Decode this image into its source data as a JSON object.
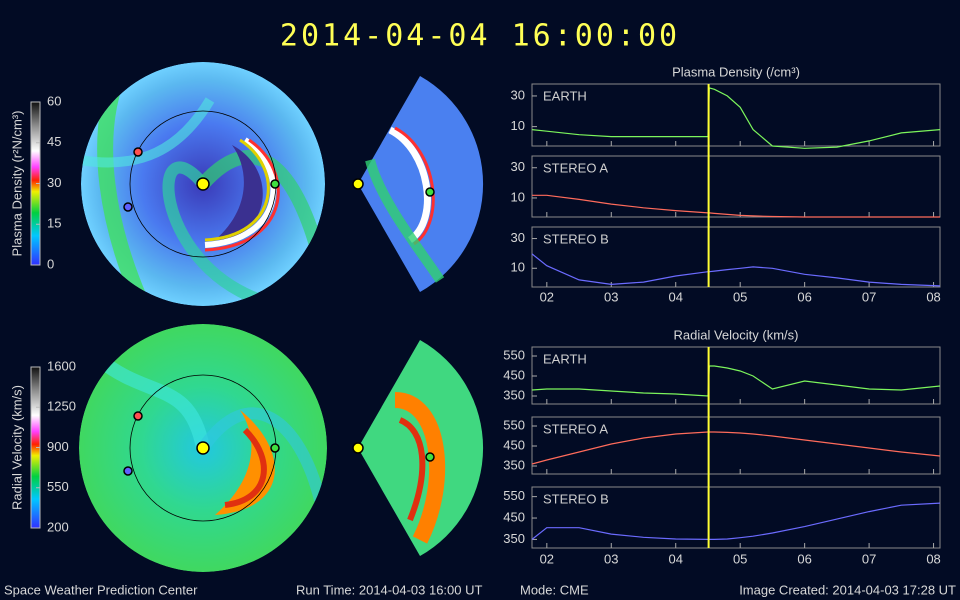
{
  "title": "2014-04-04 16:00:00",
  "footer": {
    "left": "Space Weather Prediction Center",
    "run_time": "Run Time: 2014-04-03 16:00 UT",
    "mode": "Mode: CME",
    "created": "Image Created: 2014-04-03 17:28 UT"
  },
  "colorbars": [
    {
      "label": "Plasma Density (r²N/cm³)",
      "ylim": [
        0,
        60
      ],
      "ticks": [
        0,
        15,
        30,
        45,
        60
      ]
    },
    {
      "label": "Radial Velocity (km/s)",
      "ylim": [
        200,
        1600
      ],
      "ticks": [
        200,
        550,
        900,
        1250,
        1600
      ]
    }
  ],
  "chart_data": [
    {
      "type": "line",
      "title": "Plasma Density (/cm³)",
      "log": true,
      "x": [
        1.77,
        2.0,
        2.5,
        3.0,
        3.5,
        4.0,
        4.5,
        4.52,
        4.6,
        4.8,
        5.0,
        5.2,
        5.5,
        6.0,
        6.5,
        7.0,
        7.5,
        8.1
      ],
      "xlim": [
        1.77,
        8.1
      ],
      "xticks": [
        {
          "value": 2,
          "label": "02"
        },
        {
          "value": 3,
          "label": "03"
        },
        {
          "value": 4,
          "label": "04"
        },
        {
          "value": 5,
          "label": "05"
        },
        {
          "value": 6,
          "label": "06"
        },
        {
          "value": 7,
          "label": "07"
        },
        {
          "value": 8,
          "label": "08"
        }
      ],
      "marker_x": 4.51,
      "marker_color": "#ffff33",
      "series": [
        {
          "name": "EARTH",
          "color": "#7cf55c",
          "ylim": [
            5,
            46
          ],
          "yticks": [
            10,
            30
          ],
          "values": [
            9,
            8.5,
            7.5,
            7,
            7,
            7,
            7,
            40,
            38,
            30,
            20,
            9,
            5,
            4.6,
            4.8,
            6,
            8,
            9
          ]
        },
        {
          "name": "STEREO A",
          "color": "#ff6b5b",
          "ylim": [
            5,
            46
          ],
          "yticks": [
            10,
            30
          ],
          "values": [
            11,
            11,
            9.5,
            8,
            7,
            6.3,
            5.8,
            5.8,
            5.7,
            5.5,
            5.3,
            5.2,
            5.1,
            5,
            5,
            5,
            5,
            5
          ]
        },
        {
          "name": "STEREO B",
          "color": "#6b6bff",
          "ylim": [
            5,
            46
          ],
          "yticks": [
            10,
            30
          ],
          "values": [
            17,
            11,
            6.5,
            5.5,
            6,
            7.5,
            8.8,
            8.8,
            9,
            9.5,
            10,
            10.5,
            10,
            8,
            7,
            6,
            5.5,
            5.2
          ]
        }
      ]
    },
    {
      "type": "line",
      "title": "Radial Velocity (km/s)",
      "log": false,
      "x": [
        1.77,
        2.0,
        2.5,
        3.0,
        3.5,
        4.0,
        4.5,
        4.52,
        4.6,
        4.8,
        5.0,
        5.2,
        5.5,
        6.0,
        6.5,
        7.0,
        7.5,
        8.1
      ],
      "xlim": [
        1.77,
        8.1
      ],
      "xticks": [
        {
          "value": 2,
          "label": "02"
        },
        {
          "value": 3,
          "label": "03"
        },
        {
          "value": 4,
          "label": "04"
        },
        {
          "value": 5,
          "label": "05"
        },
        {
          "value": 6,
          "label": "06"
        },
        {
          "value": 7,
          "label": "07"
        },
        {
          "value": 8,
          "label": "08"
        }
      ],
      "marker_x": 4.51,
      "marker_color": "#ffff33",
      "series": [
        {
          "name": "EARTH",
          "color": "#7cf55c",
          "ylim": [
            310,
            595
          ],
          "yticks": [
            350,
            450,
            550
          ],
          "values": [
            380,
            385,
            385,
            375,
            365,
            360,
            350,
            500,
            500,
            490,
            475,
            450,
            385,
            425,
            405,
            385,
            380,
            400
          ]
        },
        {
          "name": "STEREO A",
          "color": "#ff6b5b",
          "ylim": [
            310,
            595
          ],
          "yticks": [
            350,
            450,
            550
          ],
          "values": [
            360,
            380,
            420,
            460,
            490,
            510,
            520,
            520,
            520,
            518,
            515,
            510,
            500,
            480,
            460,
            440,
            420,
            400
          ]
        },
        {
          "name": "STEREO B",
          "color": "#6b6bff",
          "ylim": [
            310,
            595
          ],
          "yticks": [
            350,
            450,
            550
          ],
          "values": [
            350,
            405,
            405,
            375,
            360,
            352,
            350,
            350,
            350,
            352,
            358,
            365,
            380,
            410,
            445,
            480,
            510,
            520
          ]
        }
      ]
    }
  ]
}
